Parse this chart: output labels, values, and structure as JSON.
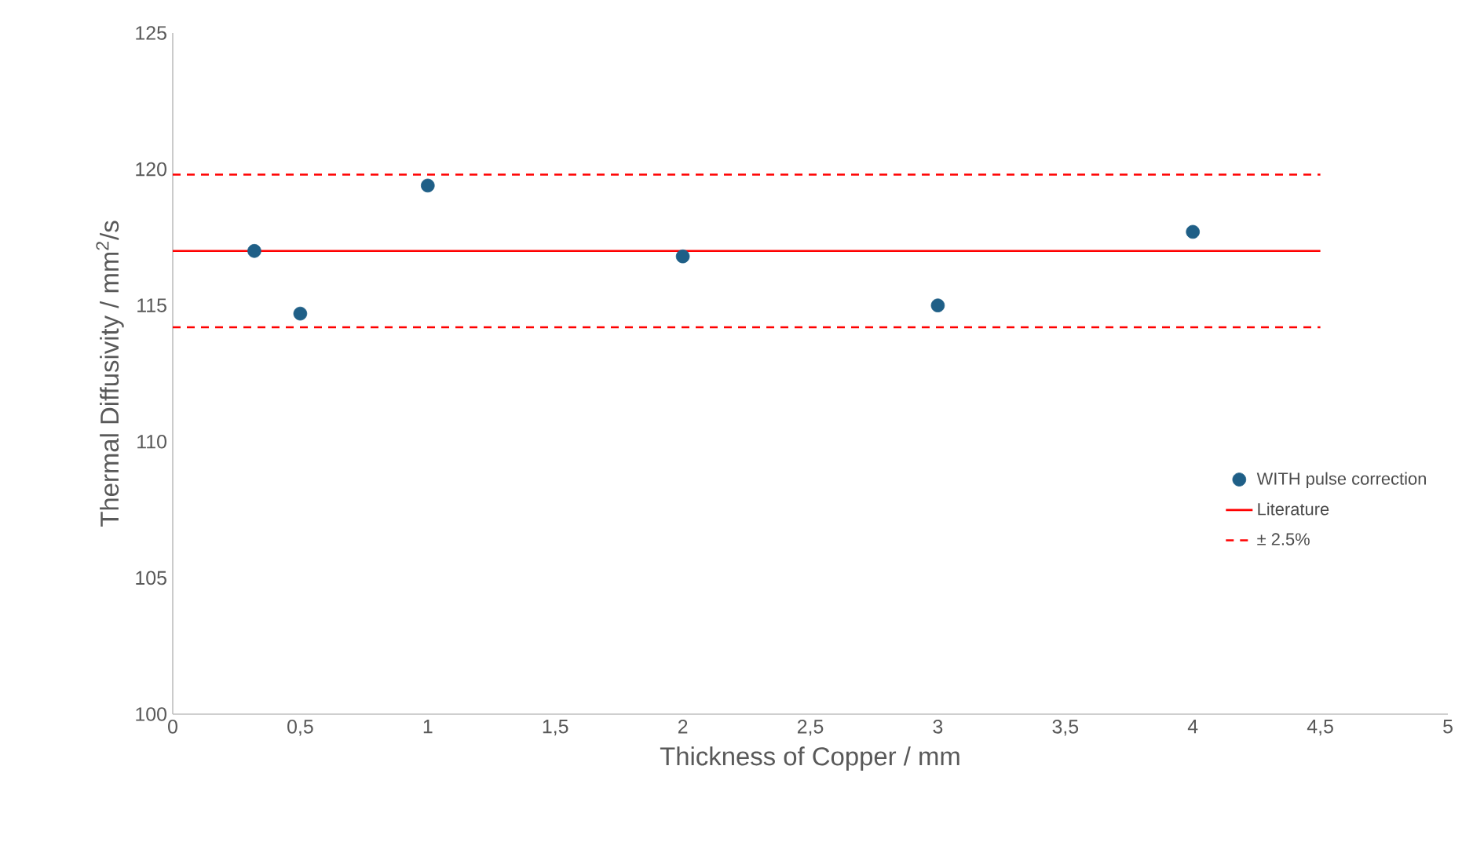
{
  "chart_data": {
    "type": "scatter",
    "xlabel": "Thickness of Copper / mm",
    "ylabel": "Thermal Diffusivity / mm$^{2}$/s",
    "xlim": [
      0,
      5
    ],
    "ylim": [
      100,
      125
    ],
    "xticks": [
      0,
      {
        "value": 0.5,
        "label": "0,5"
      },
      1,
      {
        "value": 1.5,
        "label": "1,5"
      },
      2,
      {
        "value": 2.5,
        "label": "2,5"
      },
      3,
      {
        "value": 3.5,
        "label": "3,5"
      },
      4,
      {
        "value": 4.5,
        "label": "4,5"
      },
      5
    ],
    "yticks": [
      100,
      105,
      110,
      115,
      120,
      125
    ],
    "legend": "right",
    "series": [
      {
        "name": "WITH pulse correction",
        "marker": "circle",
        "color": "#1f5f87",
        "x": [
          0.32,
          0.5,
          1,
          2,
          3,
          4
        ],
        "values": [
          117.0,
          114.7,
          119.4,
          116.8,
          115.0,
          117.7
        ]
      },
      {
        "name": "Literature",
        "type": "line",
        "marker": "none",
        "line_style": "solid",
        "color": "#ff0000",
        "x": [
          0,
          4.5
        ],
        "values": [
          117.0,
          117.0
        ]
      },
      {
        "name": "± 2.5%",
        "type": "line",
        "marker": "none",
        "line_style": "dashed",
        "color": "#ff0000",
        "x": [
          0,
          4.5
        ],
        "values": [
          119.8,
          119.8
        ]
      },
      {
        "type": "line",
        "marker": "none",
        "line_style": "dashed",
        "color": "#ff0000",
        "x": [
          0,
          4.5
        ],
        "values": [
          114.2,
          114.2
        ]
      }
    ]
  }
}
